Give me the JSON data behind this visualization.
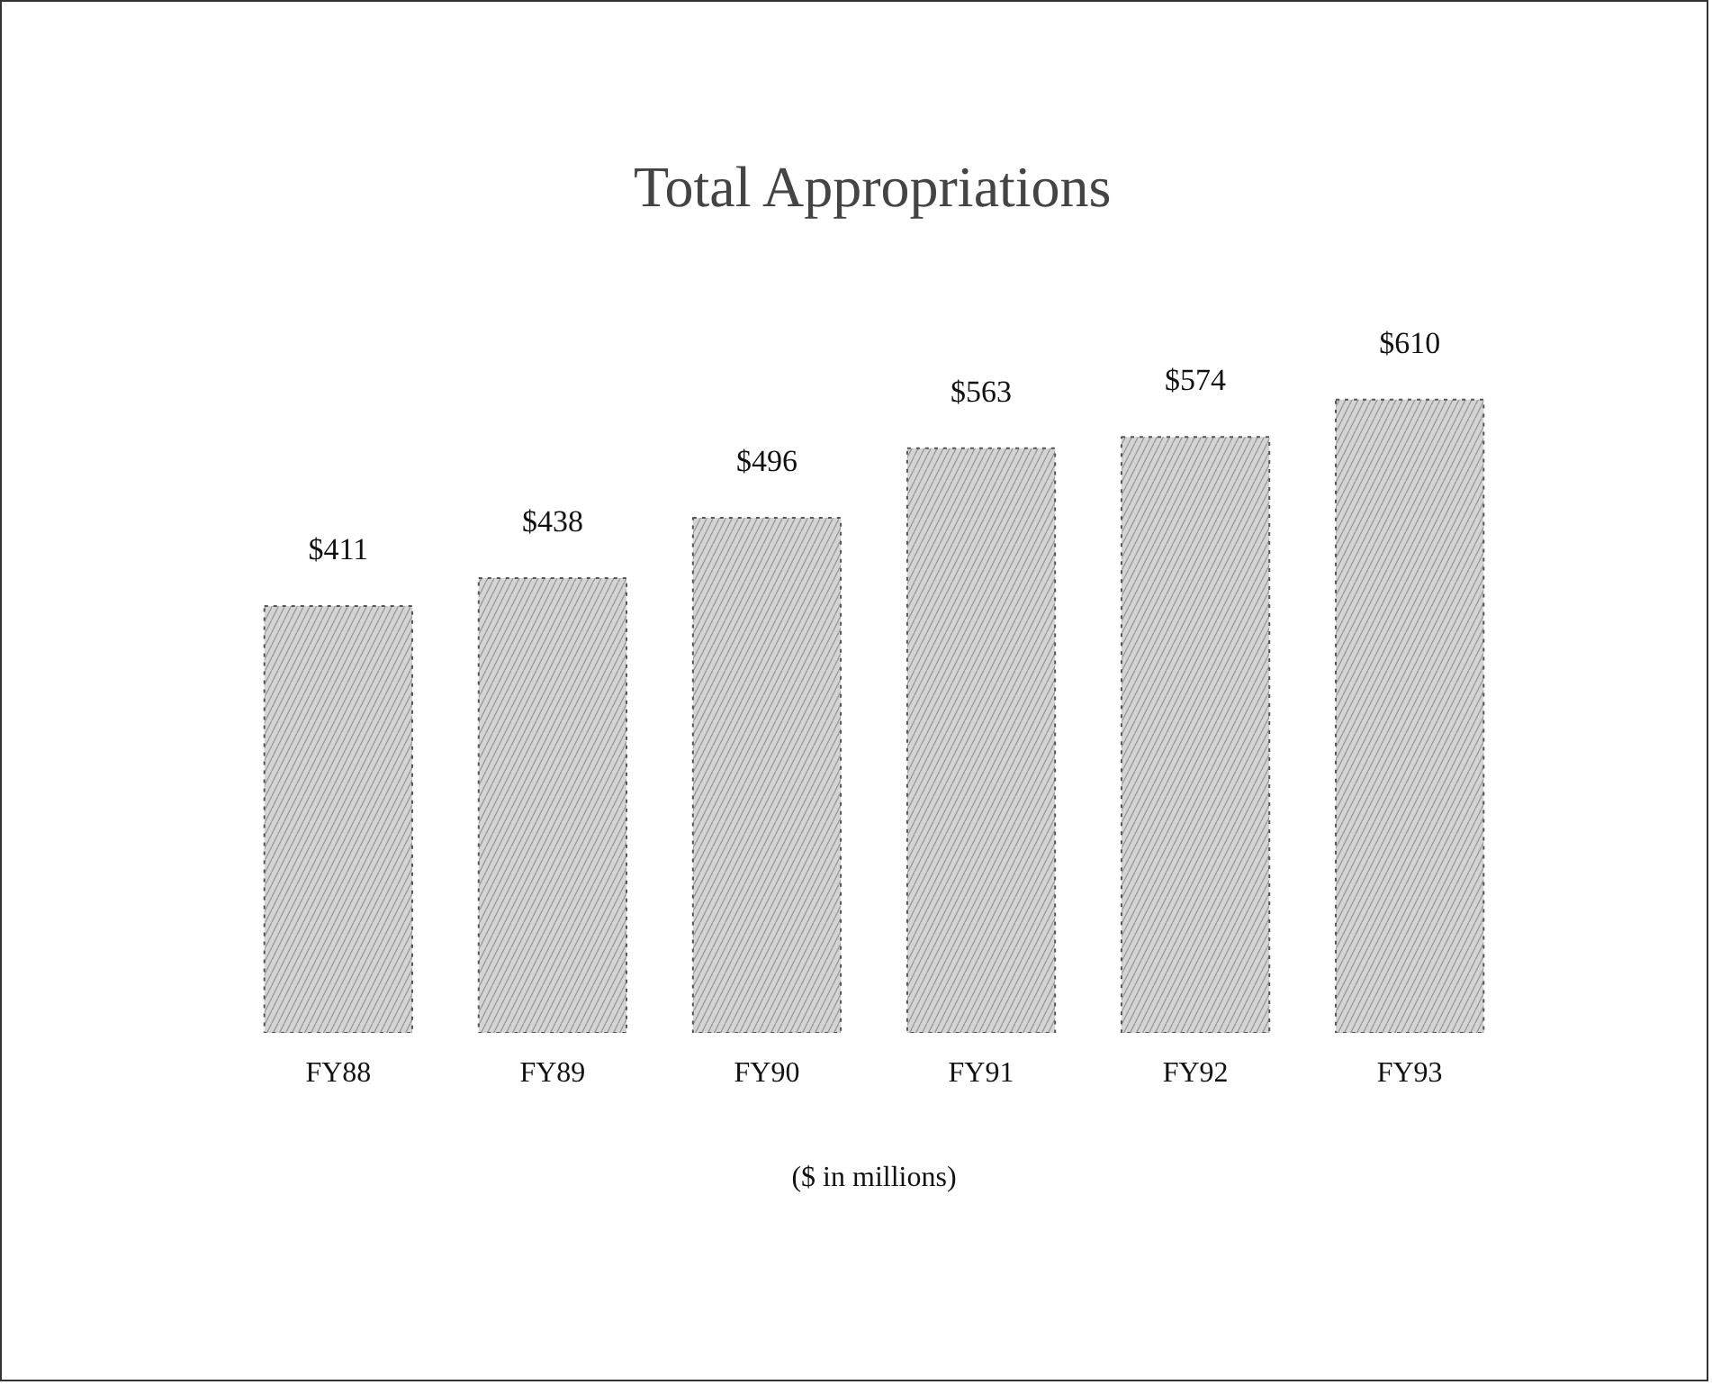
{
  "chart_data": {
    "type": "bar",
    "title": "Total Appropriations",
    "xlabel": "($ in millions)",
    "categories": [
      "FY88",
      "FY89",
      "FY90",
      "FY91",
      "FY92",
      "FY93"
    ],
    "values": [
      411,
      438,
      496,
      563,
      574,
      610
    ],
    "value_labels": [
      "$411",
      "$438",
      "$496",
      "$563",
      "$574",
      "$610"
    ],
    "color": "#d4d4d4"
  }
}
